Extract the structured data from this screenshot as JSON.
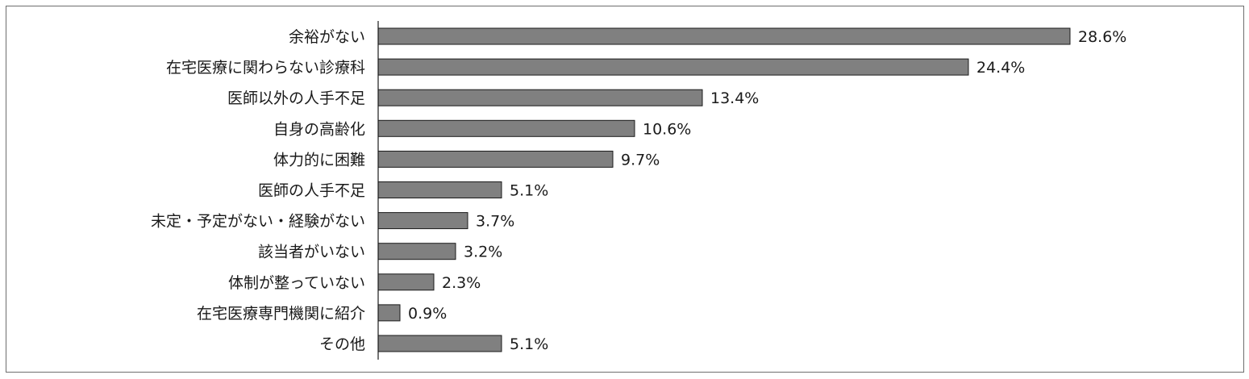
{
  "colors": {
    "bar_fill": "#808080",
    "bar_stroke": "#1a1a1a",
    "axis": "#1a1a1a",
    "frame": "#6e6e6e"
  },
  "chart_data": {
    "type": "bar",
    "orientation": "horizontal",
    "title": "",
    "xlabel": "",
    "ylabel": "",
    "xlim": [
      0,
      30
    ],
    "grid": false,
    "legend": "none",
    "categories": [
      "余裕がない",
      "在宅医療に関わらない診療科",
      "医師以外の人手不足",
      "自身の高齢化",
      "体力的に困難",
      "医師の人手不足",
      "未定・予定がない・経験がない",
      "該当者がいない",
      "体制が整っていない",
      "在宅医療専門機関に紹介",
      "その他"
    ],
    "values": [
      28.6,
      24.4,
      13.4,
      10.6,
      9.7,
      5.1,
      3.7,
      3.2,
      2.3,
      0.9,
      5.1
    ],
    "value_labels": [
      "28.6%",
      "24.4%",
      "13.4%",
      "10.6%",
      "9.7%",
      "5.1%",
      "3.7%",
      "3.2%",
      "2.3%",
      "0.9%",
      "5.1%"
    ]
  }
}
